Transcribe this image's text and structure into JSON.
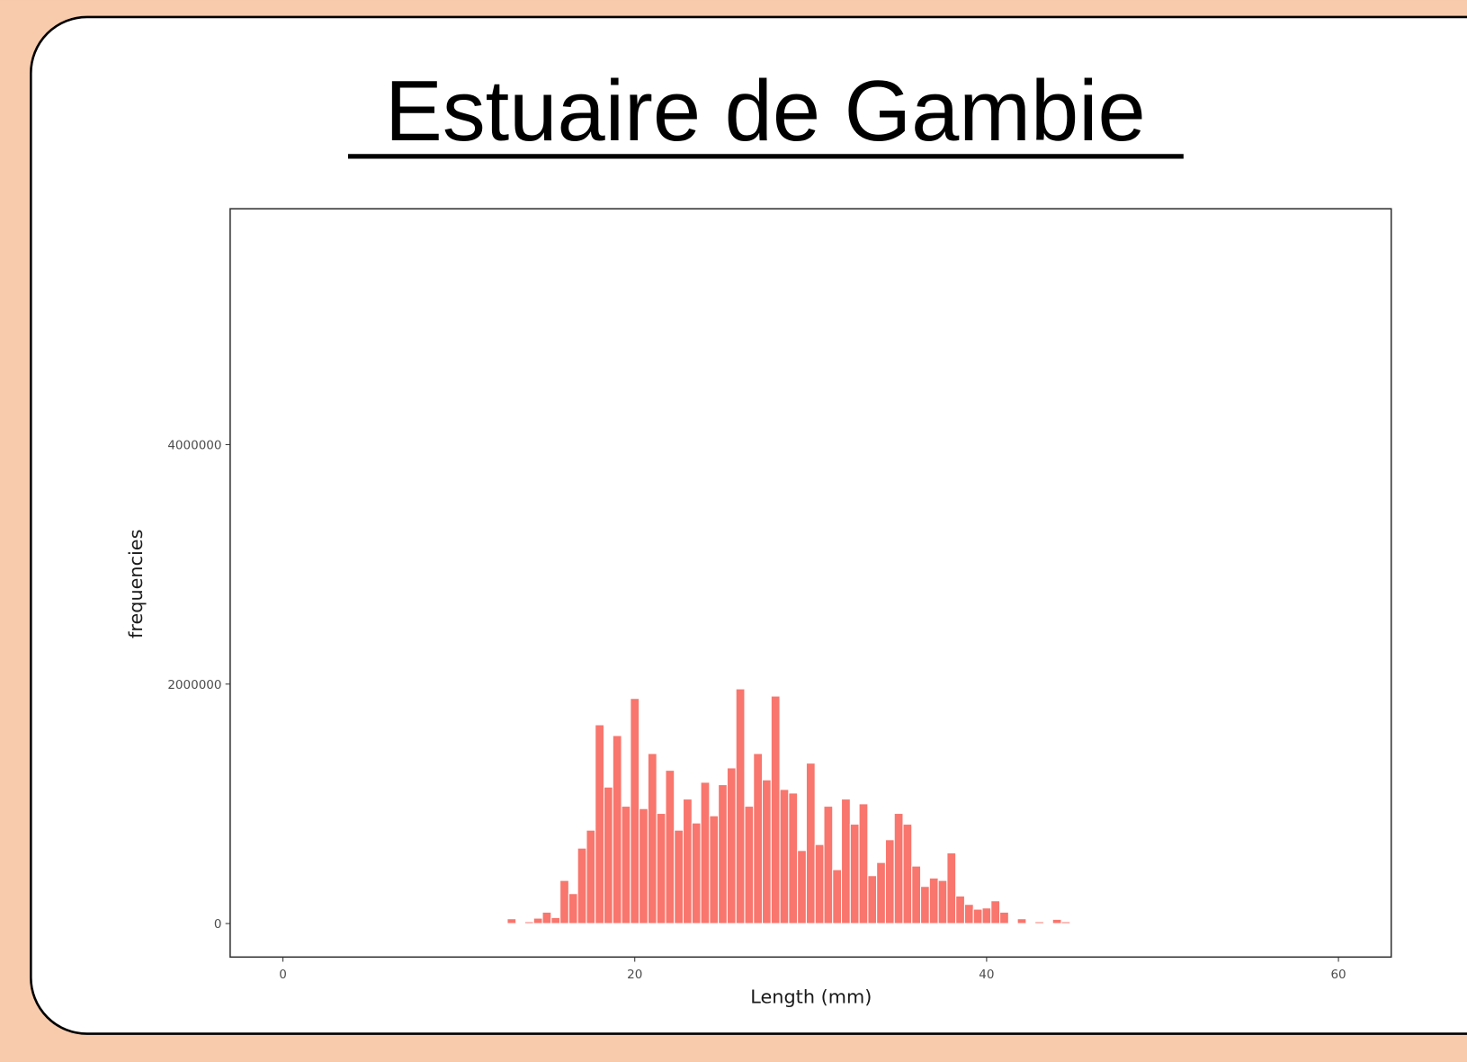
{
  "chart_data": {
    "type": "histogram",
    "title": "Estuaire de Gambie",
    "xlabel": "Length (mm)",
    "ylabel": "frequencies",
    "color": "#f8766d",
    "bins": [
      12.75,
      13.25,
      13.75,
      14.25,
      14.75,
      15.25,
      15.75,
      16.25,
      16.75,
      17.25,
      17.75,
      18.25,
      18.75,
      19.25,
      19.75,
      20.25,
      20.75,
      21.25,
      21.75,
      22.25,
      22.75,
      23.25,
      23.75,
      24.25,
      24.75,
      25.25,
      25.75,
      26.25,
      26.75,
      27.25,
      27.75,
      28.25,
      28.75,
      29.25,
      29.75,
      30.25,
      30.75,
      31.25,
      31.75,
      32.25,
      32.75,
      33.25,
      33.75,
      34.25,
      34.75,
      35.25,
      35.75,
      36.25,
      36.75,
      37.25,
      37.75,
      38.25,
      38.75,
      39.25,
      39.75,
      40.25,
      40.75,
      41.25,
      41.75,
      42.25,
      42.75,
      43.25,
      43.75,
      44.25,
      44.75
    ],
    "values": [
      40000,
      0,
      15000,
      45000,
      95000,
      50000,
      360000,
      250000,
      630000,
      780000,
      1660000,
      1140000,
      1570000,
      980000,
      1880000,
      960000,
      1420000,
      920000,
      1280000,
      780000,
      1040000,
      840000,
      1180000,
      900000,
      1160000,
      1300000,
      1960000,
      980000,
      1420000,
      1200000,
      1900000,
      1120000,
      1090000,
      610000,
      1340000,
      660000,
      980000,
      450000,
      1040000,
      830000,
      1000000,
      400000,
      510000,
      700000,
      920000,
      830000,
      480000,
      310000,
      380000,
      360000,
      590000,
      230000,
      160000,
      120000,
      130000,
      190000,
      95000,
      0,
      40000,
      0,
      15000,
      0,
      35000,
      15000
    ],
    "xlim": [
      -3,
      63
    ],
    "xticks": [
      0,
      20,
      40,
      60
    ],
    "ylim": [
      -280000,
      5970000
    ],
    "yticks": [
      0,
      2000000,
      4000000
    ]
  }
}
